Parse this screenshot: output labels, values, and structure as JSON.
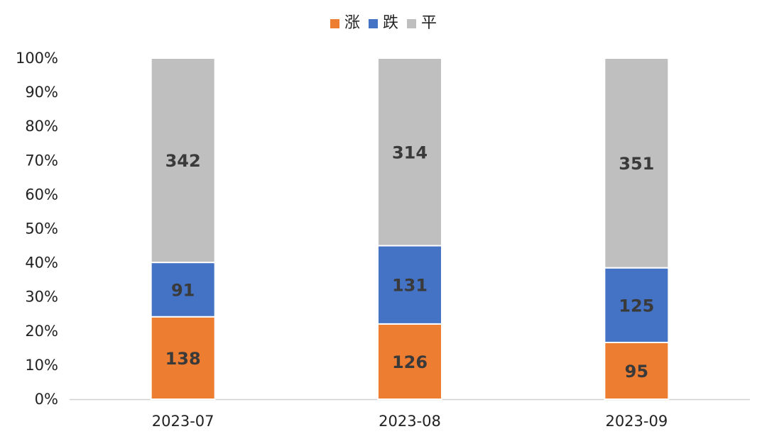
{
  "chart_data": {
    "type": "bar",
    "stacked": true,
    "normalized": "100%",
    "categories": [
      "2023-07",
      "2023-08",
      "2023-09"
    ],
    "series": [
      {
        "name": "涨",
        "color": "#ED7D31",
        "values": [
          138,
          126,
          95
        ]
      },
      {
        "name": "跌",
        "color": "#4472C4",
        "values": [
          91,
          131,
          125
        ]
      },
      {
        "name": "平",
        "color": "#BFBFBF",
        "values": [
          342,
          314,
          351
        ]
      }
    ],
    "yticks": [
      "0%",
      "10%",
      "20%",
      "30%",
      "40%",
      "50%",
      "60%",
      "70%",
      "80%",
      "90%",
      "100%"
    ],
    "ylim": [
      0,
      100
    ],
    "legend_position": "top-center",
    "grid": false
  }
}
